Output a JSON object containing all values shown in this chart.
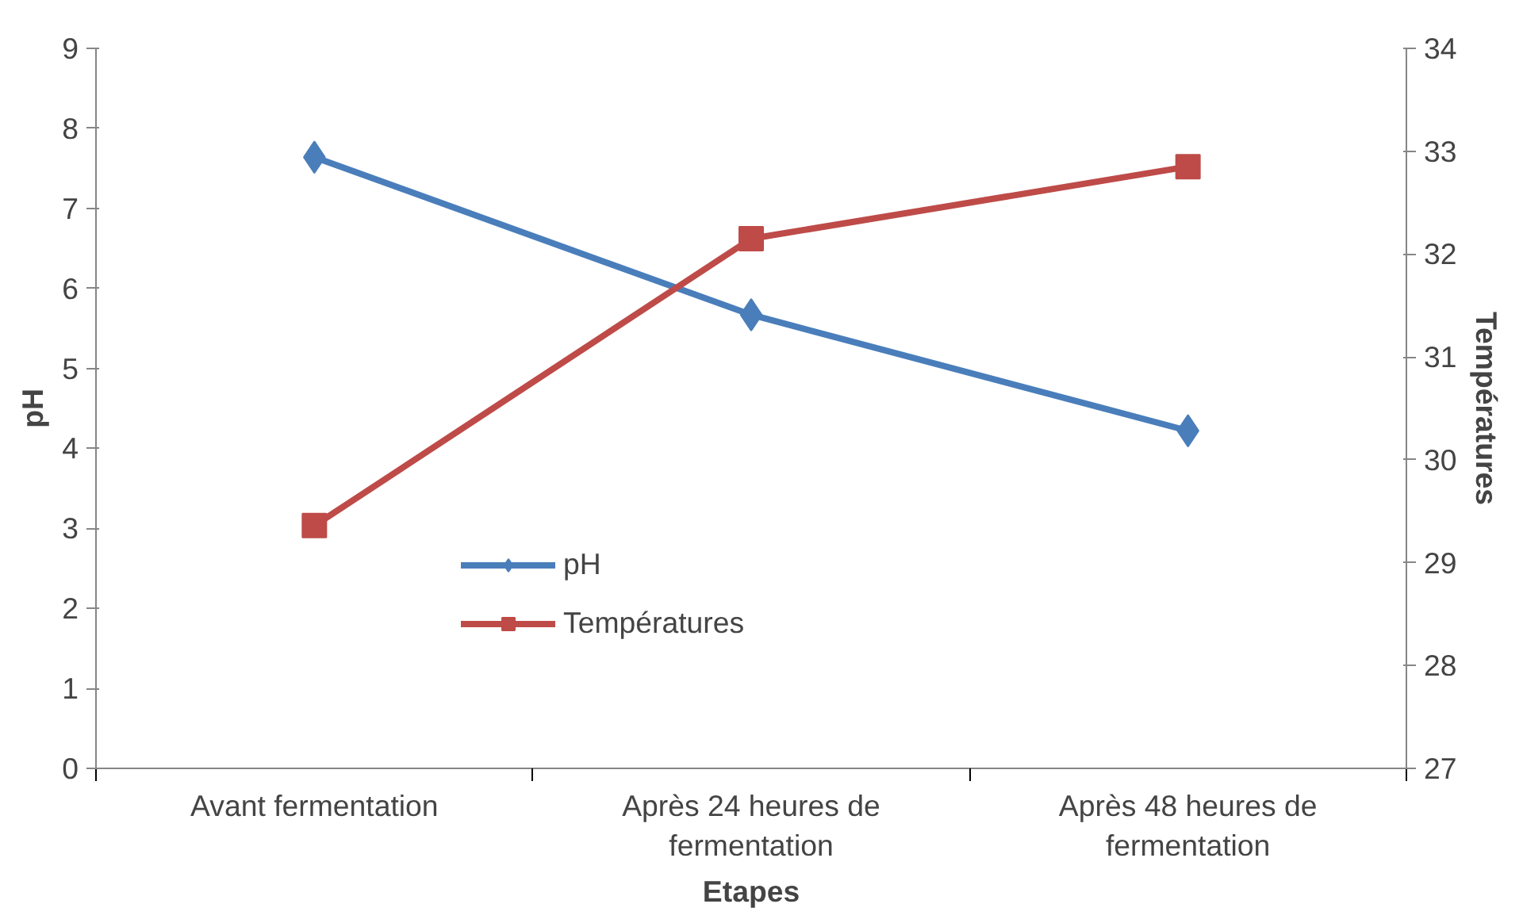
{
  "chart_data": {
    "type": "line",
    "categories": [
      "Avant fermentation",
      "Après 24 heures de fermentation",
      "Après 48 heures de fermentation"
    ],
    "series": [
      {
        "name": "pH",
        "color": "#4a7ebb",
        "values": [
          7.64,
          5.67,
          4.22
        ],
        "marker": "diamond"
      },
      {
        "name": "Températures",
        "color": "#be4b48",
        "values": [
          29.36,
          32.15,
          32.85
        ],
        "marker": "square",
        "axis": "y2"
      }
    ],
    "xlabel": "Etapes",
    "ylabel": "pH",
    "y2label": "Températures",
    "ylim": [
      0,
      9
    ],
    "yticks": [
      0,
      1,
      2,
      3,
      4,
      5,
      6,
      7,
      8,
      9
    ],
    "y2lim": [
      27,
      34
    ],
    "y2ticks": [
      27,
      28,
      29,
      30,
      31,
      32,
      33,
      34
    ],
    "grid": false,
    "legend": "bottom left"
  }
}
